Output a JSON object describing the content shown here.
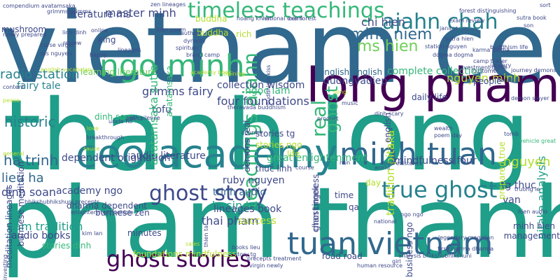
{
  "palette": {
    "teal": "#1f9e89",
    "blue": "#31688e",
    "navy": "#3e4989",
    "purple": "#482878",
    "darkpurple": "#440154",
    "green": "#35b779",
    "lime": "#6ece58",
    "yellowgreen": "#b5de2b",
    "steel": "#26828e",
    "indigo": "#472d7b"
  },
  "words": [
    {
      "text": "vietnam ceo",
      "color": "#31688e"
    },
    {
      "text": "thanh long",
      "color": "#1f9e89"
    },
    {
      "text": "pham thanh",
      "color": "#1f9e89"
    },
    {
      "text": "ceo academy",
      "color": "#26828e"
    },
    {
      "text": "minh tuan",
      "color": "#31688e"
    },
    {
      "text": "long pham",
      "color": "#440154"
    },
    {
      "text": "tuan vietnam",
      "color": "#31688e"
    },
    {
      "text": "ngo minh",
      "color": "#35b779"
    },
    {
      "text": "timeless teachings",
      "color": "#35b779"
    },
    {
      "text": "ajahn chah",
      "color": "#26828e"
    },
    {
      "text": "ghost story",
      "color": "#3e4989"
    },
    {
      "text": "true ghost",
      "color": "#26828e"
    },
    {
      "text": "ghost stories",
      "color": "#440154"
    },
    {
      "text": "teachings ajahn",
      "color": "#35b779"
    },
    {
      "text": "minh niem",
      "color": "#31688e"
    },
    {
      "text": "ms hien",
      "color": "#6ece58"
    },
    {
      "text": "chi hien",
      "color": "#3e4989"
    },
    {
      "text": "master minh",
      "color": "#3e4989"
    },
    {
      "text": "literature ms",
      "color": "#3e4989"
    },
    {
      "text": "radio station",
      "color": "#26828e"
    },
    {
      "text": "grimms fairy",
      "color": "#3e4989"
    },
    {
      "text": "ngoc lam",
      "color": "#35b779"
    },
    {
      "text": "historic",
      "color": "#26828e"
    },
    {
      "text": "ha trinh",
      "color": "#31688e"
    },
    {
      "text": "lieu ha",
      "color": "#31688e"
    },
    {
      "text": "dinh soan",
      "color": "#3e4989"
    },
    {
      "text": "academy ngo",
      "color": "#3e4989"
    },
    {
      "text": "thai pham",
      "color": "#3e4989"
    },
    {
      "text": "nam tradition",
      "color": "#1f9e89"
    },
    {
      "text": "audio books",
      "color": "#3e4989"
    },
    {
      "text": "business",
      "color": "#1f9e89"
    },
    {
      "text": "trinh audio",
      "color": "#31688e"
    },
    {
      "text": "ruby nguyen",
      "color": "#3e4989"
    },
    {
      "text": "lineages book",
      "color": "#3e4989"
    },
    {
      "text": "four foundations",
      "color": "#3e4989"
    },
    {
      "text": "collection wisdom",
      "color": "#3e4989"
    },
    {
      "text": "complete collection",
      "color": "#35b779"
    },
    {
      "text": "daily life",
      "color": "#3e4989"
    },
    {
      "text": "nguyen minh",
      "color": "#b5de2b"
    },
    {
      "text": "mindfulness four",
      "color": "#3e4989"
    },
    {
      "text": "audio literature",
      "color": "#3e4989"
    },
    {
      "text": "dependent origination",
      "color": "#3e4989"
    },
    {
      "text": "great enlightenment",
      "color": "#35b779"
    },
    {
      "text": "stories tg",
      "color": "#3e4989"
    },
    {
      "text": "stories ngo",
      "color": "#b5de2b"
    },
    {
      "text": "thuc linh",
      "color": "#3e4989"
    },
    {
      "text": "ghost",
      "color": "#35b779"
    },
    {
      "text": "real",
      "color": "#35b779"
    },
    {
      "text": "tofu",
      "color": "#3e4989"
    },
    {
      "text": "dinh soo",
      "color": "#35b779"
    },
    {
      "text": "fairy tale",
      "color": "#26828e"
    },
    {
      "text": "learning literature",
      "color": "#6ece58"
    },
    {
      "text": "duongvadiep",
      "color": "#3e4989"
    },
    {
      "text": "english english",
      "color": "#31688e"
    },
    {
      "text": "tradition pitaka",
      "color": "#b5de2b"
    },
    {
      "text": "pitaka analysis",
      "color": "#1f9e89"
    },
    {
      "text": "nguyen",
      "color": "#b5de2b"
    },
    {
      "text": "tg thuc",
      "color": "#3e4989"
    },
    {
      "text": "van",
      "color": "#3e4989"
    },
    {
      "text": "minh hien",
      "color": "#3e4989"
    },
    {
      "text": "management",
      "color": "#3e4989"
    },
    {
      "text": "success",
      "color": "#b5de2b"
    },
    {
      "text": "road road",
      "color": "#3e4989"
    },
    {
      "text": "minutes",
      "color": "#3e4989"
    },
    {
      "text": "burmese zen",
      "color": "#3e4989"
    },
    {
      "text": "dharma dependent",
      "color": "#3e4989"
    },
    {
      "text": "foundations mindfulness",
      "color": "#b5de2b"
    },
    {
      "text": "stories dinh",
      "color": "#35b779"
    },
    {
      "text": "avatamsaka sutra",
      "color": "#35b779"
    },
    {
      "text": "avatamsaka",
      "color": "#35b779"
    },
    {
      "text": "chan timeless",
      "color": "#3e4989"
    },
    {
      "text": "ghost ngoc",
      "color": "#3e4989"
    },
    {
      "text": "meditation lineages",
      "color": "#3e4989"
    },
    {
      "text": "burmese meditation",
      "color": "#3e4989"
    },
    {
      "text": "prepared true",
      "color": "#b5de2b"
    },
    {
      "text": "demons real",
      "color": "#3e4989"
    },
    {
      "text": "business ngo",
      "color": "#3e4989"
    },
    {
      "text": "king",
      "color": "#3e4989"
    },
    {
      "text": "rich",
      "color": "#b5de2b"
    },
    {
      "text": "buddha",
      "color": "#b5de2b"
    },
    {
      "text": "buddha",
      "color": "#b5de2b"
    },
    {
      "text": "life",
      "color": "#b5de2b"
    },
    {
      "text": "people",
      "color": "#3e4989"
    },
    {
      "text": "english",
      "color": "#3e4989"
    },
    {
      "text": "day",
      "color": "#b5de2b"
    },
    {
      "text": "time",
      "color": "#3e4989"
    },
    {
      "text": "qa",
      "color": "#3e4989"
    },
    {
      "text": "mushroom",
      "color": "#3e4989"
    },
    {
      "text": "newly prepared",
      "color": "#3e4989"
    },
    {
      "text": "compendium avatamsaka",
      "color": "#3e4989"
    },
    {
      "text": "grimms grimms",
      "color": "#3e4989"
    },
    {
      "text": "ms nguyen",
      "color": "#3e4989"
    },
    {
      "text": "curse virgin",
      "color": "#3e4989"
    },
    {
      "text": "english vocabulary",
      "color": "#b5de2b"
    },
    {
      "text": "content",
      "color": "#3e4989"
    },
    {
      "text": "hoang khiem",
      "color": "#3e4989"
    },
    {
      "text": "national exam",
      "color": "#3e4989"
    },
    {
      "text": "zen forest",
      "color": "#3e4989"
    },
    {
      "text": "zen lineages",
      "color": "#3e4989"
    },
    {
      "text": "sutra hien",
      "color": "#3e4989"
    },
    {
      "text": "station nguyen",
      "color": "#3e4989"
    },
    {
      "text": "dogma dogma",
      "color": "#3e4989"
    },
    {
      "text": "karma karma",
      "color": "#3e4989"
    },
    {
      "text": "camp trailer",
      "color": "#3e4989"
    },
    {
      "text": "buddhism life",
      "color": "#3e4989"
    },
    {
      "text": "exam review",
      "color": "#3e4989"
    },
    {
      "text": "author",
      "color": "#3e4989"
    },
    {
      "text": "dynasty",
      "color": "#3e4989"
    },
    {
      "text": "spiritual",
      "color": "#3e4989"
    },
    {
      "text": "brand camp",
      "color": "#3e4989"
    },
    {
      "text": "online",
      "color": "#3e4989"
    },
    {
      "text": "review",
      "color": "#3e4989"
    },
    {
      "text": "happy",
      "color": "#3e4989"
    },
    {
      "text": "linh dinh",
      "color": "#3e4989"
    },
    {
      "text": "janitor",
      "color": "#3e4989"
    },
    {
      "text": "customer",
      "color": "#3e4989"
    },
    {
      "text": "journey demons",
      "color": "#3e4989"
    },
    {
      "text": "hanoi",
      "color": "#3e4989"
    },
    {
      "text": "demon slayer",
      "color": "#3e4989"
    },
    {
      "text": "wealth",
      "color": "#3e4989"
    },
    {
      "text": "poem day",
      "color": "#3e4989"
    },
    {
      "text": "tomb",
      "color": "#3e4989"
    },
    {
      "text": "vehicle great",
      "color": "#35b779"
    },
    {
      "text": "dinh scary",
      "color": "#3e4989"
    },
    {
      "text": "road existence",
      "color": "#3e4989"
    },
    {
      "text": "legendary magician",
      "color": "#3e4989"
    },
    {
      "text": "truong le",
      "color": "#3e4989"
    },
    {
      "text": "analysis bhikshubhikshuni",
      "color": "#3e4989"
    },
    {
      "text": "theravada buddhism",
      "color": "#3e4989"
    },
    {
      "text": "uncle ho",
      "color": "#3e4989"
    },
    {
      "text": "path silence",
      "color": "#3e4989"
    },
    {
      "text": "country",
      "color": "#3e4989"
    },
    {
      "text": "bhikshubhikshuni precepts",
      "color": "#3e4989"
    },
    {
      "text": "sales",
      "color": "#b5de2b"
    },
    {
      "text": "precepts treatment",
      "color": "#3e4989"
    },
    {
      "text": "virgin newly",
      "color": "#3e4989"
    },
    {
      "text": "human resource",
      "color": "#3e4989"
    },
    {
      "text": "girl",
      "color": "#3e4989"
    },
    {
      "text": "firstdharma dharma",
      "color": "#3e4989"
    },
    {
      "text": "hien audio",
      "color": "#3e4989"
    },
    {
      "text": "national",
      "color": "#3e4989"
    },
    {
      "text": "kim lan",
      "color": "#3e4989"
    },
    {
      "text": "enlightenment vehicle",
      "color": "#3e4989"
    },
    {
      "text": "investing",
      "color": "#3e4989"
    },
    {
      "text": "forest distinguishing",
      "color": "#3e4989"
    },
    {
      "text": "sort",
      "color": "#3e4989"
    },
    {
      "text": "son",
      "color": "#3e4989"
    },
    {
      "text": "sutra book",
      "color": "#3e4989"
    },
    {
      "text": "nun",
      "color": "#3e4989"
    },
    {
      "text": "world",
      "color": "#3e4989"
    },
    {
      "text": "product",
      "color": "#3e4989"
    },
    {
      "text": "mind",
      "color": "#3e4989"
    },
    {
      "text": "love",
      "color": "#b5de2b"
    },
    {
      "text": "general",
      "color": "#b5de2b"
    },
    {
      "text": "peace",
      "color": "#b5de2b"
    },
    {
      "text": "breakthrough",
      "color": "#3e4989"
    },
    {
      "text": "sauce",
      "color": "#b5de2b"
    },
    {
      "text": "song",
      "color": "#b5de2b"
    },
    {
      "text": "books lieu",
      "color": "#3e4989"
    },
    {
      "text": "story tg",
      "color": "#3e4989"
    },
    {
      "text": "thien tai",
      "color": "#3e4989"
    },
    {
      "text": "course",
      "color": "#3e4989"
    },
    {
      "text": "buddhism kiss",
      "color": "#3e4989"
    },
    {
      "text": "investment guide",
      "color": "#3e4989"
    },
    {
      "text": "january",
      "color": "#3e4989"
    },
    {
      "text": "lineages",
      "color": "#3e4989"
    },
    {
      "text": "academy book",
      "color": "#b5de2b"
    },
    {
      "text": "training",
      "color": "#b5de2b"
    },
    {
      "text": "hien poem",
      "color": "#3e4989"
    },
    {
      "text": "music",
      "color": "#3e4989"
    },
    {
      "text": "ngo ngo",
      "color": "#3e4989"
    },
    {
      "text": "mindfulness",
      "color": "#3e4989"
    }
  ]
}
